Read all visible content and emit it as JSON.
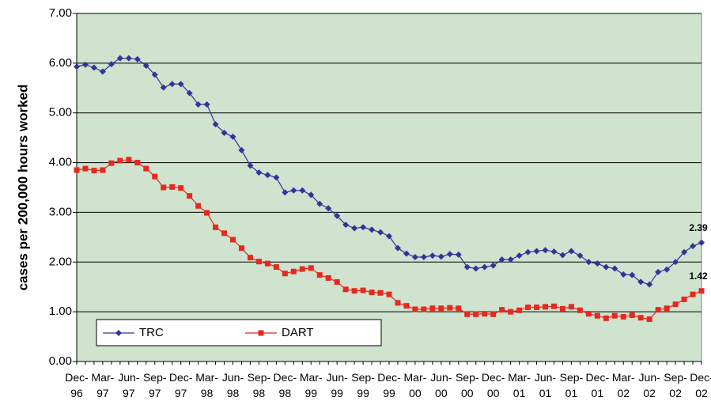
{
  "chart_data": {
    "type": "line",
    "y_label": "cases per 200,000 hours worked",
    "categories": [
      "Dec-96",
      null,
      null,
      "Mar-97",
      null,
      null,
      "Jun-97",
      null,
      null,
      "Sep-97",
      null,
      null,
      "Dec-97",
      null,
      null,
      "Mar-98",
      null,
      null,
      "Jun-98",
      null,
      null,
      "Sep-98",
      null,
      null,
      "Dec-98",
      null,
      null,
      "Mar-99",
      null,
      null,
      "Jun-99",
      null,
      null,
      "Sep-99",
      null,
      null,
      "Dec-99",
      null,
      null,
      "Mar-00",
      null,
      null,
      "Jun-00",
      null,
      null,
      "Sep-00",
      null,
      null,
      "Dec-00",
      null,
      null,
      "Mar-01",
      null,
      null,
      "Jun-01",
      null,
      null,
      "Sep-01",
      null,
      null,
      "Dec-01",
      null,
      null,
      "Mar-02",
      null,
      null,
      "Jun-02",
      null,
      null,
      "Sep-02",
      null,
      null,
      "Dec-02"
    ],
    "series": [
      {
        "name": "TRC",
        "color": "#333399",
        "marker": "diamond",
        "values": [
          5.93,
          5.97,
          5.91,
          5.83,
          5.98,
          6.1,
          6.1,
          6.08,
          5.95,
          5.77,
          5.51,
          5.58,
          5.58,
          5.4,
          5.17,
          5.17,
          4.77,
          4.6,
          4.52,
          4.25,
          3.94,
          3.8,
          3.75,
          3.7,
          3.4,
          3.44,
          3.44,
          3.35,
          3.17,
          3.08,
          2.93,
          2.75,
          2.68,
          2.7,
          2.65,
          2.6,
          2.52,
          2.28,
          2.17,
          2.1,
          2.1,
          2.13,
          2.11,
          2.16,
          2.15,
          1.9,
          1.87,
          1.9,
          1.93,
          2.05,
          2.05,
          2.13,
          2.2,
          2.22,
          2.24,
          2.21,
          2.14,
          2.22,
          2.13,
          2.0,
          1.97,
          1.9,
          1.87,
          1.75,
          1.74,
          1.6,
          1.55,
          1.8,
          1.85,
          2.0,
          2.2,
          2.32,
          2.39
        ]
      },
      {
        "name": "DART",
        "color": "#e8281e",
        "marker": "square",
        "values": [
          3.85,
          3.88,
          3.84,
          3.85,
          3.99,
          4.04,
          4.06,
          4.0,
          3.88,
          3.72,
          3.5,
          3.51,
          3.49,
          3.33,
          3.13,
          2.99,
          2.7,
          2.58,
          2.45,
          2.28,
          2.09,
          2.01,
          1.97,
          1.9,
          1.77,
          1.81,
          1.86,
          1.88,
          1.74,
          1.68,
          1.6,
          1.45,
          1.42,
          1.43,
          1.39,
          1.38,
          1.35,
          1.18,
          1.12,
          1.05,
          1.05,
          1.07,
          1.07,
          1.08,
          1.07,
          0.95,
          0.95,
          0.96,
          0.95,
          1.04,
          1.0,
          1.03,
          1.09,
          1.09,
          1.1,
          1.11,
          1.06,
          1.1,
          1.03,
          0.96,
          0.92,
          0.87,
          0.92,
          0.9,
          0.93,
          0.88,
          0.85,
          1.04,
          1.07,
          1.15,
          1.25,
          1.35,
          1.42
        ]
      }
    ],
    "labeled_points": [
      72
    ],
    "ylim": [
      0,
      7
    ],
    "yticks": [
      {
        "value": 0,
        "label": "0.00"
      },
      {
        "value": 1,
        "label": "1.00"
      },
      {
        "value": 2,
        "label": "2.00"
      },
      {
        "value": 3,
        "label": "3.00"
      },
      {
        "value": 4,
        "label": "4.00"
      },
      {
        "value": 5,
        "label": "5.00"
      },
      {
        "value": 6,
        "label": "6.00"
      },
      {
        "value": 7,
        "label": "7.00"
      }
    ],
    "grid": true,
    "legend": "lower left",
    "plot_background": "#cfe3cf"
  }
}
